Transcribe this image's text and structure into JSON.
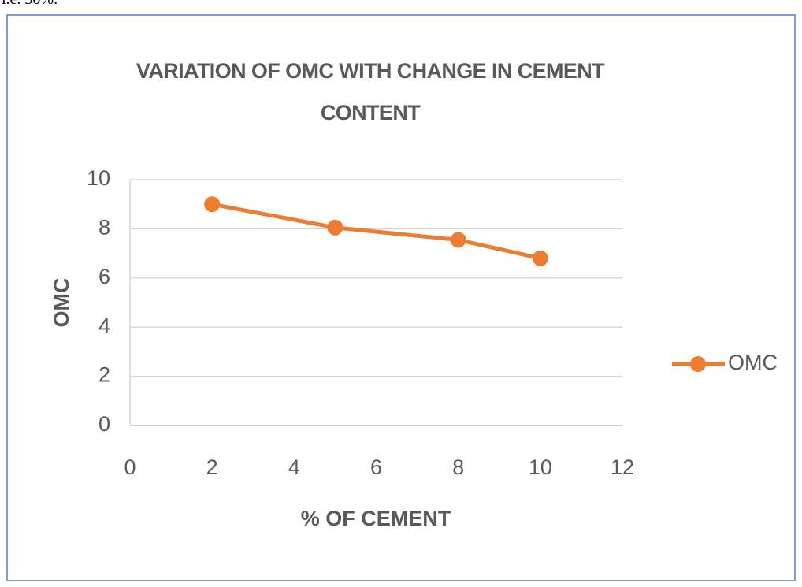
{
  "caption": "i.e. 30%.",
  "chart_data": {
    "type": "line",
    "title": "VARIATION OF OMC WITH CHANGE IN CEMENT CONTENT",
    "xlabel": "% OF CEMENT",
    "ylabel": "OMC",
    "x": [
      2,
      5,
      8,
      10
    ],
    "series": [
      {
        "name": "OMC",
        "color": "#ed7d31",
        "values": [
          9,
          8.05,
          7.55,
          6.8
        ]
      }
    ],
    "xlim": [
      0,
      12
    ],
    "xticks": [
      0,
      2,
      4,
      6,
      8,
      10,
      12
    ],
    "ylim": [
      0,
      10
    ],
    "yticks": [
      0,
      2,
      4,
      6,
      8,
      10
    ],
    "grid": true,
    "legend": "right"
  }
}
